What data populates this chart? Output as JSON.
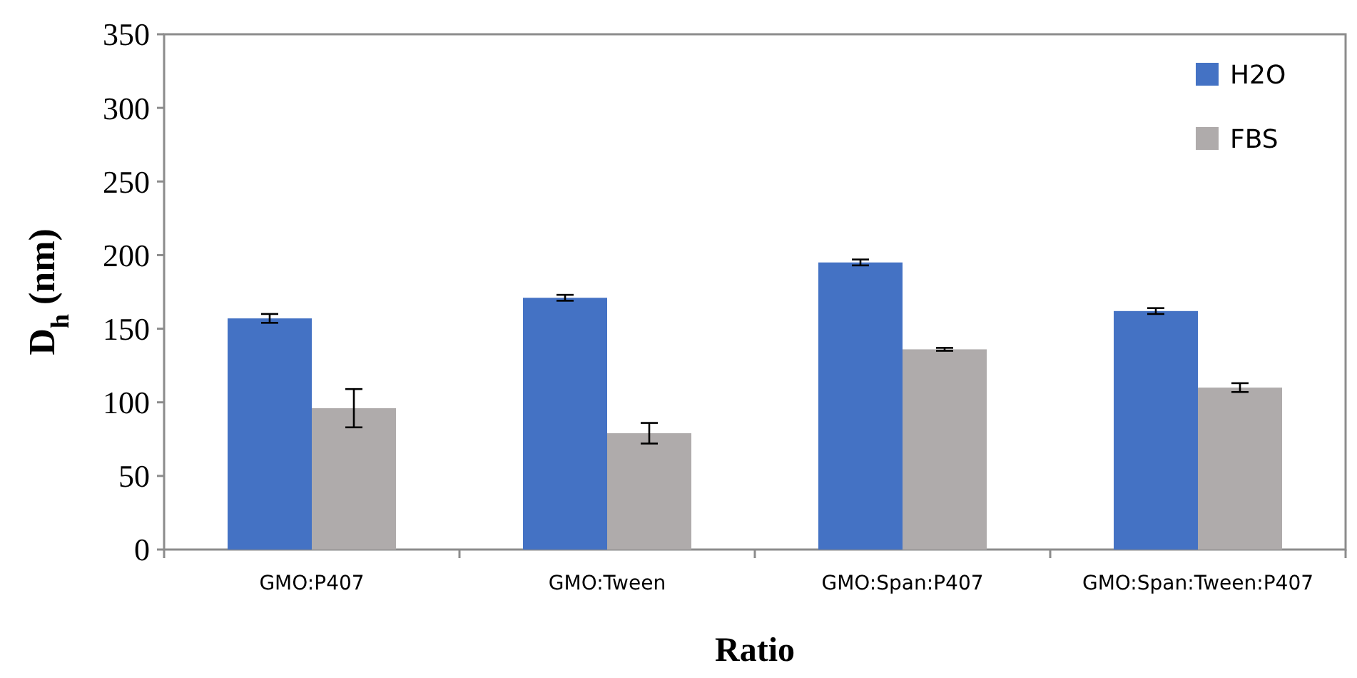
{
  "chart_data": {
    "type": "bar",
    "xlabel": "Ratio",
    "ylabel": "D$_{h}$ (nm)",
    "categories": [
      "GMO:P407",
      "GMO:Tween",
      "GMO:Span:P407",
      "GMO:Span:Tween:P407"
    ],
    "series": [
      {
        "name": "H2O",
        "color": "#4472c4",
        "values": [
          157,
          171,
          195,
          162
        ],
        "errors": [
          3,
          2,
          2,
          2
        ]
      },
      {
        "name": "FBS",
        "color": "#afabab",
        "values": [
          96,
          79,
          136,
          110
        ],
        "errors": [
          13,
          7,
          1,
          3
        ]
      }
    ],
    "ylim": [
      0,
      350
    ],
    "yticks": [
      0,
      50,
      100,
      150,
      200,
      250,
      300,
      350
    ],
    "grid": false,
    "legend": "top right"
  }
}
